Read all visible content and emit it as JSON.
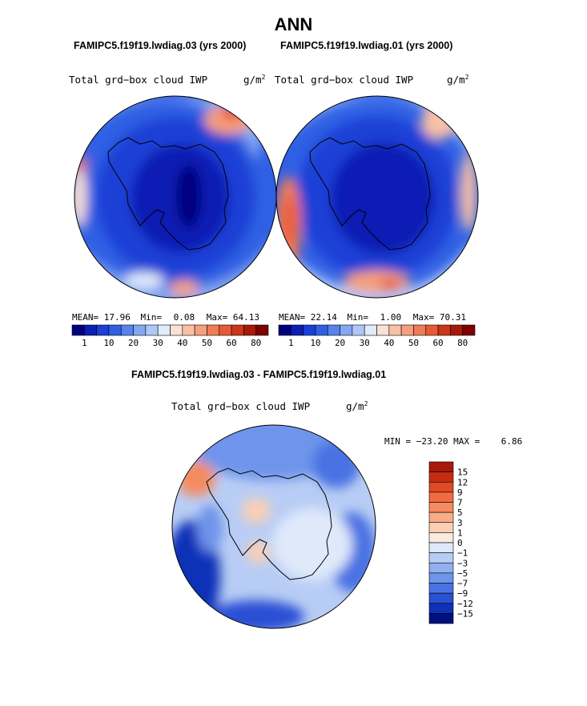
{
  "title": "ANN",
  "panels": [
    {
      "case_title": "FAMIPC5.f19f19.lwdiag.03 (yrs 2000)",
      "field": "Total grd−box cloud IWP",
      "units_base": "g/m",
      "units_exp": "2",
      "mean_label": "MEAN=",
      "mean": "17.96",
      "min_label": "Min=",
      "min": "0.08",
      "max_label": "Max=",
      "max": "64.13"
    },
    {
      "case_title": "FAMIPC5.f19f19.lwdiag.01 (yrs 2000)",
      "field": "Total grd−box cloud IWP",
      "units_base": "g/m",
      "units_exp": "2",
      "mean_label": "MEAN=",
      "mean": "22.14",
      "min_label": "Min=",
      "min": "1.00",
      "max_label": "Max=",
      "max": "70.31"
    }
  ],
  "diff_panel": {
    "case_title": "FAMIPC5.f19f19.lwdiag.03 - FAMIPC5.f19f19.lwdiag.01",
    "field": "Total grd−box cloud IWP",
    "units_base": "g/m",
    "units_exp": "2",
    "minmax": "MIN = −23.20 MAX =    6.86"
  },
  "chart_data": [
    {
      "type": "heatmap",
      "projection": "south polar stereographic",
      "title": "FAMIPC5.f19f19.lwdiag.03 (yrs 2000)",
      "variable": "Total grd-box cloud IWP",
      "units": "g/m2",
      "stats": {
        "mean": 17.96,
        "min": 0.08,
        "max": 64.13
      },
      "colorbar_ticks": [
        "1",
        "10",
        "20",
        "30",
        "40",
        "50",
        "60",
        "80"
      ],
      "colorbar_colors": [
        "#00007f",
        "#0a1fb4",
        "#1a3fd6",
        "#2f60e4",
        "#5883ec",
        "#84a7f2",
        "#aec7f7",
        "#e0ebfb",
        "#fbe0d4",
        "#f8c0a6",
        "#f59f7d",
        "#f07c57",
        "#e85a34",
        "#cc3516",
        "#a8190a",
        "#7d0000"
      ]
    },
    {
      "type": "heatmap",
      "projection": "south polar stereographic",
      "title": "FAMIPC5.f19f19.lwdiag.01 (yrs 2000)",
      "variable": "Total grd-box cloud IWP",
      "units": "g/m2",
      "stats": {
        "mean": 22.14,
        "min": 1.0,
        "max": 70.31
      },
      "colorbar_ticks": [
        "1",
        "10",
        "20",
        "30",
        "40",
        "50",
        "60",
        "80"
      ],
      "colorbar_colors": [
        "#00007f",
        "#0a1fb4",
        "#1a3fd6",
        "#2f60e4",
        "#5883ec",
        "#84a7f2",
        "#aec7f7",
        "#e0ebfb",
        "#fbe0d4",
        "#f8c0a6",
        "#f59f7d",
        "#f07c57",
        "#e85a34",
        "#cc3516",
        "#a8190a",
        "#7d0000"
      ]
    },
    {
      "type": "heatmap",
      "projection": "south polar stereographic",
      "title": "FAMIPC5.f19f19.lwdiag.03 - FAMIPC5.f19f19.lwdiag.01",
      "variable": "Total grd-box cloud IWP difference",
      "units": "g/m2",
      "stats": {
        "min": -23.2,
        "max": 6.86
      },
      "colorbar_ticks": [
        "15",
        "12",
        "9",
        "7",
        "5",
        "3",
        "1",
        "0",
        "−1",
        "−3",
        "−5",
        "−7",
        "−9",
        "−12",
        "−15"
      ],
      "colorbar_colors": [
        "#a8190a",
        "#c82c10",
        "#e04a24",
        "#f06c40",
        "#f58b5f",
        "#f8ad87",
        "#fbcfb3",
        "#fbeae0",
        "#dfe9fa",
        "#b8cdf5",
        "#90b0f0",
        "#6e94eb",
        "#4a72e2",
        "#2a50d4",
        "#1030b8",
        "#00107f"
      ]
    }
  ]
}
